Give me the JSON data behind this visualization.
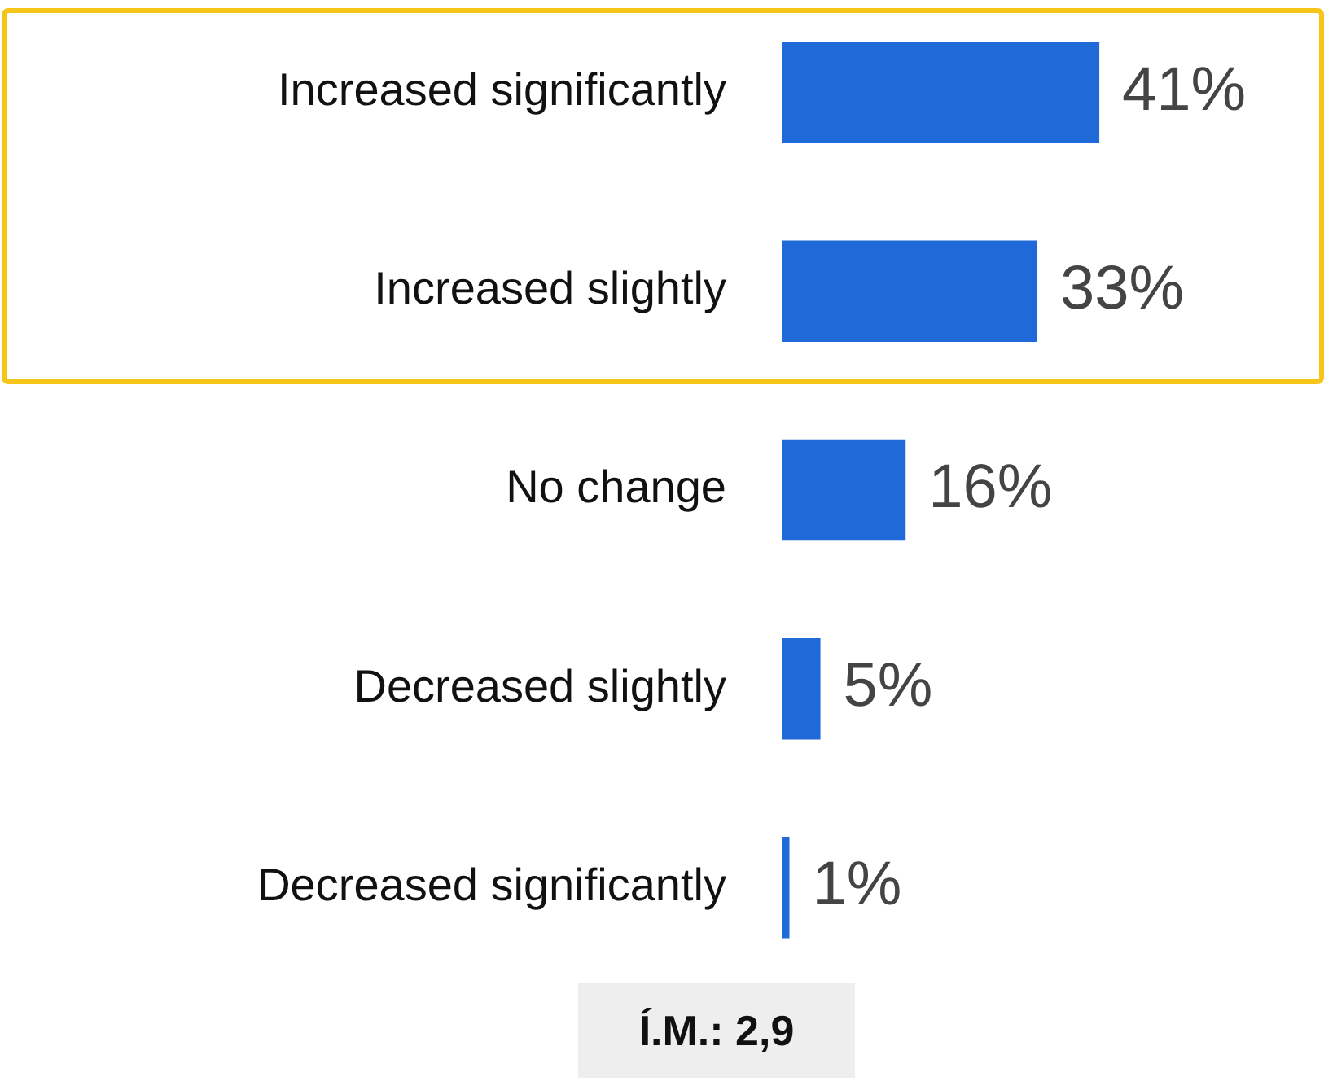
{
  "chart_data": {
    "type": "bar",
    "orientation": "horizontal",
    "categories": [
      "Increased significantly",
      "Increased slightly",
      "No change",
      "Decreased slightly",
      "Decreased significantly"
    ],
    "values": [
      41,
      33,
      16,
      5,
      1
    ],
    "value_labels": [
      "41%",
      "33%",
      "16%",
      "5%",
      "1%"
    ],
    "color": "#1f69d8",
    "xlim": [
      0,
      70
    ],
    "tick_labels": "y",
    "annotations": [
      "Í.M.: 2,9"
    ]
  }
}
